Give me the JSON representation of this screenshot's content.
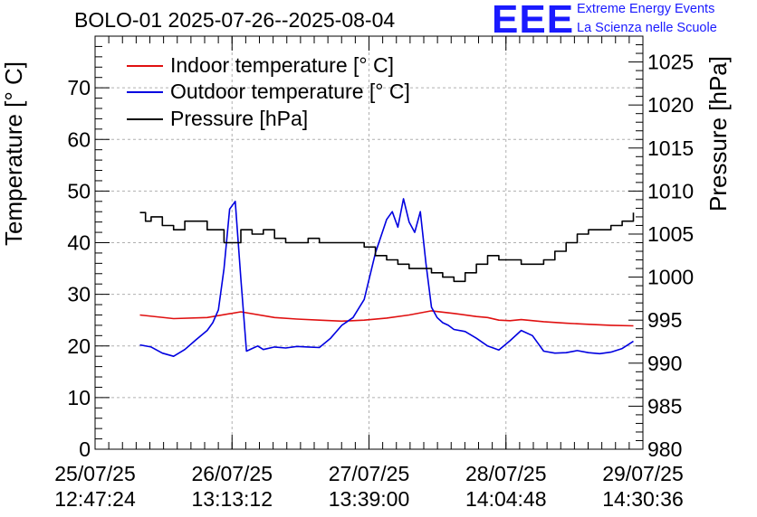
{
  "title": "BOLO-01 2025-07-26--2025-08-04",
  "logo": {
    "mark": "EEE",
    "line1": "Extreme Energy Events",
    "line2": "La Scienza nelle Scuole",
    "color": "#1a1aff"
  },
  "chart_data": {
    "type": "line",
    "ylabel_left": "Temperature [° C]",
    "ylabel_right": "Pressure [hPa]",
    "ylim_left": [
      0,
      80
    ],
    "ylim_right": [
      980,
      1028
    ],
    "yticks_left": [
      0,
      10,
      20,
      30,
      40,
      50,
      60,
      70
    ],
    "yticks_right": [
      980,
      985,
      990,
      995,
      1000,
      1005,
      1010,
      1015,
      1020,
      1025
    ],
    "xlim_hours": [
      0,
      97.7
    ],
    "xticks": [
      {
        "date": "25/07/25",
        "time": "12:47:24"
      },
      {
        "date": "26/07/25",
        "time": "13:13:12"
      },
      {
        "date": "27/07/25",
        "time": "13:39:00"
      },
      {
        "date": "28/07/25",
        "time": "14:04:48"
      },
      {
        "date": "29/07/25",
        "time": "14:30:36"
      }
    ],
    "grid": true,
    "legend_placement": "top-left",
    "series": [
      {
        "name": "Indoor temperature [° C]",
        "axis": "left",
        "color": "#e01010",
        "x": [
          8,
          14,
          20,
          26,
          32,
          36,
          40,
          44,
          48,
          52,
          56,
          60,
          64,
          68,
          70,
          72,
          74,
          76,
          80,
          84,
          88,
          92,
          96
        ],
        "y": [
          26.0,
          25.3,
          25.5,
          26.6,
          25.5,
          25.2,
          25.0,
          24.8,
          25.0,
          25.4,
          26.0,
          26.8,
          26.3,
          25.7,
          25.5,
          25.0,
          24.9,
          25.1,
          24.7,
          24.4,
          24.2,
          24.0,
          23.9
        ]
      },
      {
        "name": "Outdoor temperature [° C]",
        "axis": "left",
        "color": "#0000e0",
        "x": [
          8,
          10,
          12,
          14,
          16,
          18,
          20,
          21,
          22,
          23,
          24,
          25,
          26,
          27,
          28,
          29,
          30,
          32,
          34,
          36,
          38,
          40,
          42,
          44,
          46,
          48,
          50,
          52,
          53,
          54,
          55,
          56,
          57,
          58,
          59,
          60,
          61,
          62,
          63,
          64,
          66,
          68,
          70,
          72,
          74,
          76,
          78,
          80,
          82,
          84,
          86,
          88,
          90,
          92,
          94,
          96
        ],
        "y": [
          20.2,
          19.8,
          18.6,
          18.0,
          19.3,
          21.2,
          23.0,
          24.5,
          27.0,
          35.0,
          46.5,
          48.0,
          33.0,
          19.0,
          19.5,
          20.0,
          19.3,
          19.8,
          19.6,
          19.9,
          19.8,
          19.7,
          21.5,
          24.0,
          25.5,
          29.0,
          38.0,
          44.5,
          46.0,
          43.0,
          48.5,
          44.0,
          42.0,
          46.0,
          36.0,
          27.5,
          25.5,
          24.5,
          24.0,
          23.2,
          22.8,
          21.5,
          20.0,
          19.2,
          21.0,
          23.0,
          22.0,
          19.0,
          18.6,
          18.7,
          19.1,
          18.7,
          18.5,
          18.8,
          19.5,
          20.9
        ]
      },
      {
        "name": "Pressure [hPa]",
        "axis": "right",
        "color": "#000000",
        "x": [
          8,
          9,
          10,
          12,
          14,
          16,
          18,
          20,
          22,
          23,
          25,
          26,
          28,
          30,
          32,
          34,
          36,
          38,
          40,
          44,
          48,
          50,
          52,
          54,
          56,
          58,
          60,
          62,
          64,
          66,
          68,
          70,
          72,
          74,
          76,
          78,
          80,
          82,
          84,
          86,
          88,
          90,
          92,
          94,
          96
        ],
        "y": [
          1007.5,
          1006.5,
          1007.0,
          1006.0,
          1005.5,
          1006.5,
          1006.5,
          1005.5,
          1005.5,
          1004.0,
          1004.0,
          1005.5,
          1005.0,
          1005.5,
          1004.5,
          1004.0,
          1004.0,
          1004.5,
          1004.0,
          1004.0,
          1003.5,
          1002.5,
          1002.0,
          1001.5,
          1001.0,
          1001.0,
          1000.5,
          1000.0,
          999.5,
          1000.5,
          1001.5,
          1002.5,
          1002.0,
          1002.0,
          1001.5,
          1001.5,
          1002.0,
          1003.0,
          1004.0,
          1005.0,
          1005.5,
          1005.5,
          1006.0,
          1006.5,
          1007.5
        ]
      }
    ]
  }
}
